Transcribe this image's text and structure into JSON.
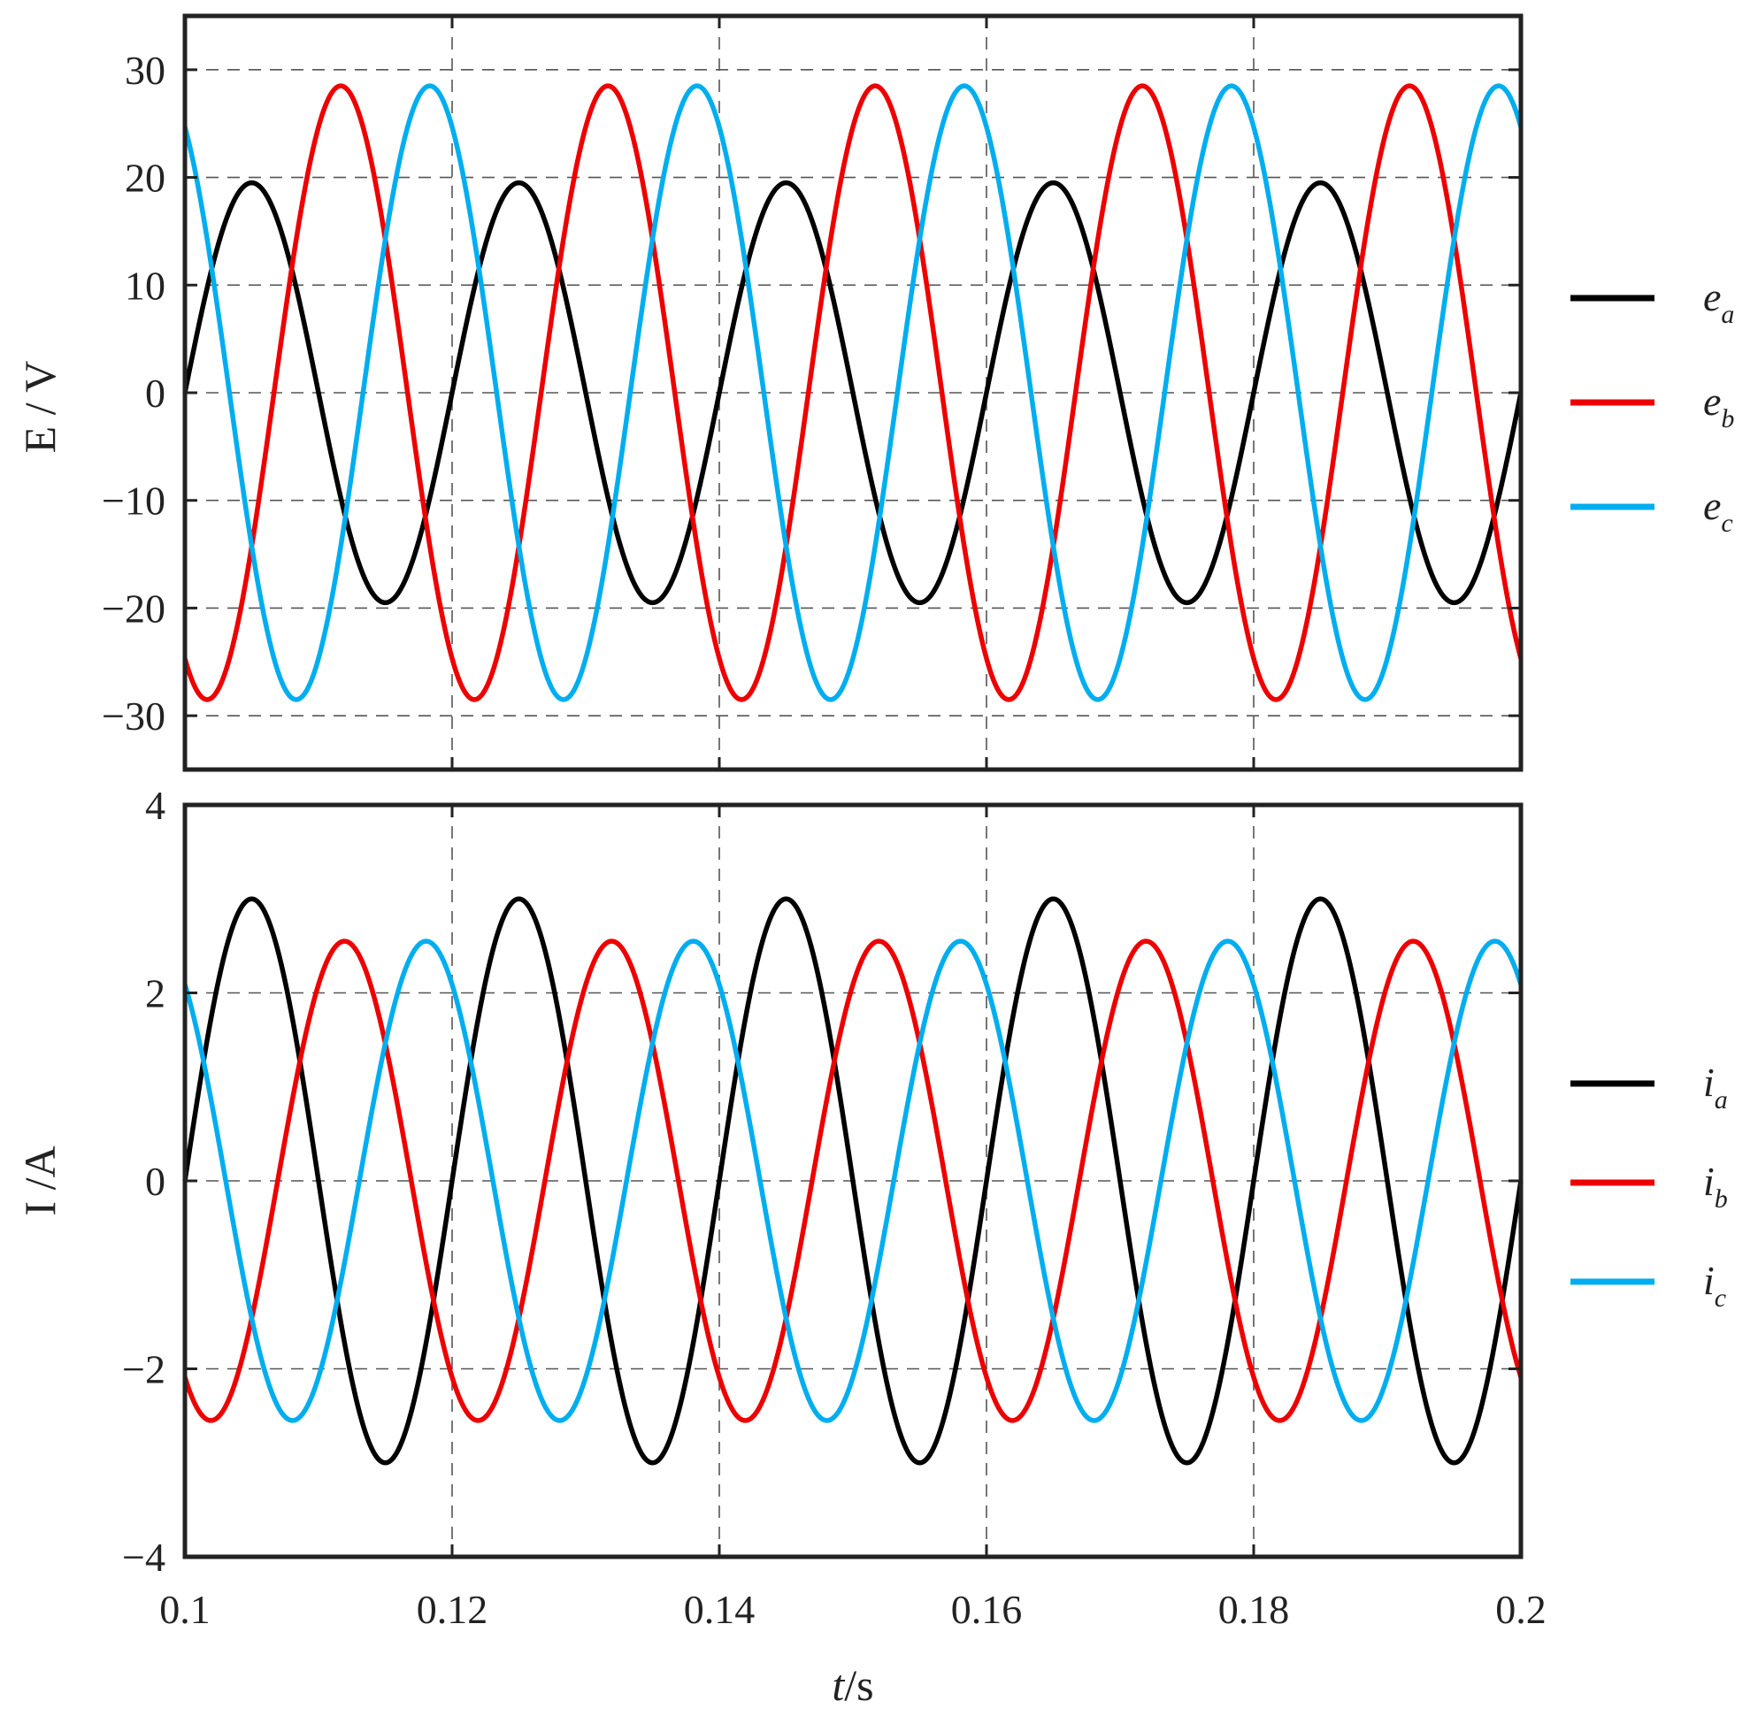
{
  "chart_data": [
    {
      "type": "line",
      "ylabel": "E / V",
      "xlim": [
        0.1,
        0.2
      ],
      "ylim": [
        -35,
        35
      ],
      "yticks": [
        "30",
        "20",
        "10",
        "0",
        "−10",
        "−20",
        "−30"
      ],
      "ytick_values": [
        30,
        20,
        10,
        0,
        -10,
        -20,
        -30
      ],
      "grid": true,
      "legend_placement": "right",
      "frequency_hz": 50,
      "series": [
        {
          "name": "e",
          "subscript": "a",
          "color": "#000000",
          "amplitude": 19.5,
          "phase_deg": 0,
          "start_value": 0
        },
        {
          "name": "e",
          "subscript": "b",
          "color": "#ee0000",
          "amplitude": 28.5,
          "phase_deg": -120,
          "start_value": -24.7
        },
        {
          "name": "e",
          "subscript": "c",
          "color": "#00aeef",
          "amplitude": 28.5,
          "phase_deg": 120,
          "start_value": 24.7
        }
      ]
    },
    {
      "type": "line",
      "ylabel": "I /A",
      "xlabel_italic": "t",
      "xlabel_unit": "/s",
      "xlim": [
        0.1,
        0.2
      ],
      "ylim": [
        -4,
        4
      ],
      "yticks": [
        "4",
        "2",
        "0",
        "−2",
        "−4"
      ],
      "ytick_values": [
        4,
        2,
        0,
        -2,
        -4
      ],
      "xticks": [
        "0.1",
        "0.12",
        "0.14",
        "0.16",
        "0.18",
        "0.2"
      ],
      "xtick_values": [
        0.1,
        0.12,
        0.14,
        0.16,
        0.18,
        0.2
      ],
      "grid": true,
      "legend_placement": "right",
      "frequency_hz": 50,
      "series": [
        {
          "name": "i",
          "subscript": "a",
          "color": "#000000",
          "amplitude": 3.0,
          "phase_deg": 0,
          "start_value": 0
        },
        {
          "name": "i",
          "subscript": "b",
          "color": "#ee0000",
          "amplitude": 2.55,
          "phase_deg": -125,
          "start_value": -2.05
        },
        {
          "name": "i",
          "subscript": "c",
          "color": "#00aeef",
          "amplitude": 2.55,
          "phase_deg": 125,
          "start_value": 2.05
        }
      ]
    }
  ]
}
